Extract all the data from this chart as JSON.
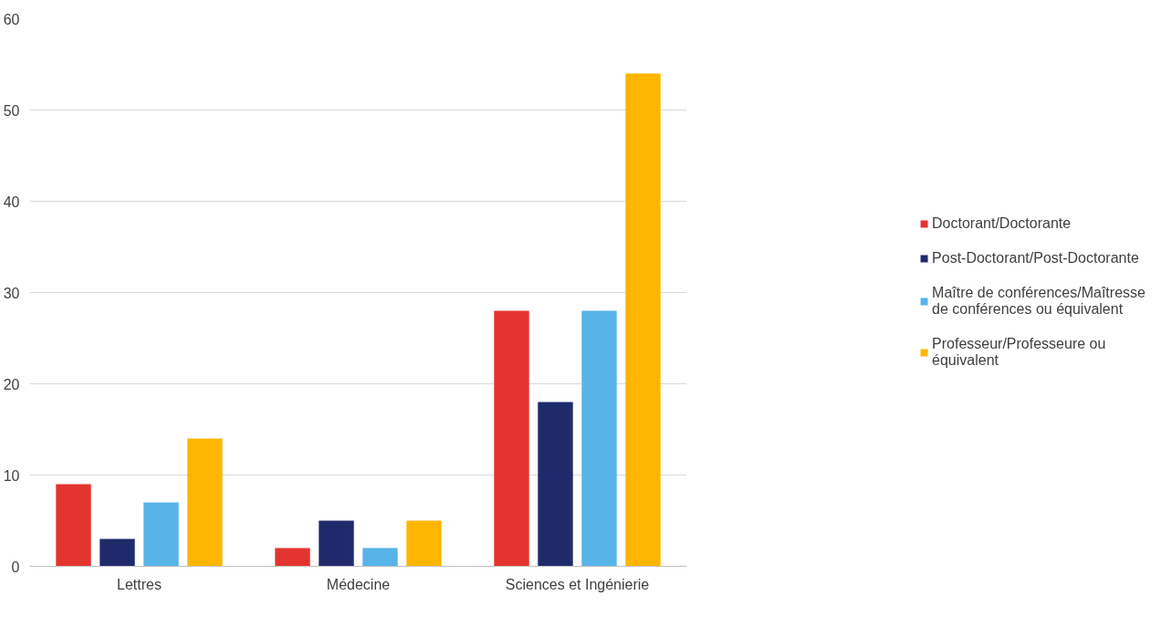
{
  "chart_data": {
    "type": "bar",
    "categories": [
      "Lettres",
      "Médecine",
      "Sciences et Ingénierie"
    ],
    "series": [
      {
        "name": "Doctorant/Doctorante",
        "color": "#e3342f",
        "values": [
          9,
          2,
          28
        ]
      },
      {
        "name": "Post-Doctorant/Post-Doctorante",
        "color": "#1f2a6b",
        "values": [
          3,
          5,
          18
        ]
      },
      {
        "name": "Maître de conférences/Maîtresse de conférences ou équivalent",
        "color": "#56b4e9",
        "values": [
          7,
          2,
          28
        ]
      },
      {
        "name": "Professeur/Professeure ou équivalent",
        "color": "#ffb600",
        "values": [
          14,
          5,
          54
        ]
      }
    ],
    "ylim": [
      0,
      60
    ],
    "yticks": [
      0,
      10,
      20,
      30,
      40,
      50,
      60
    ],
    "grid": "y",
    "legend": "right"
  }
}
